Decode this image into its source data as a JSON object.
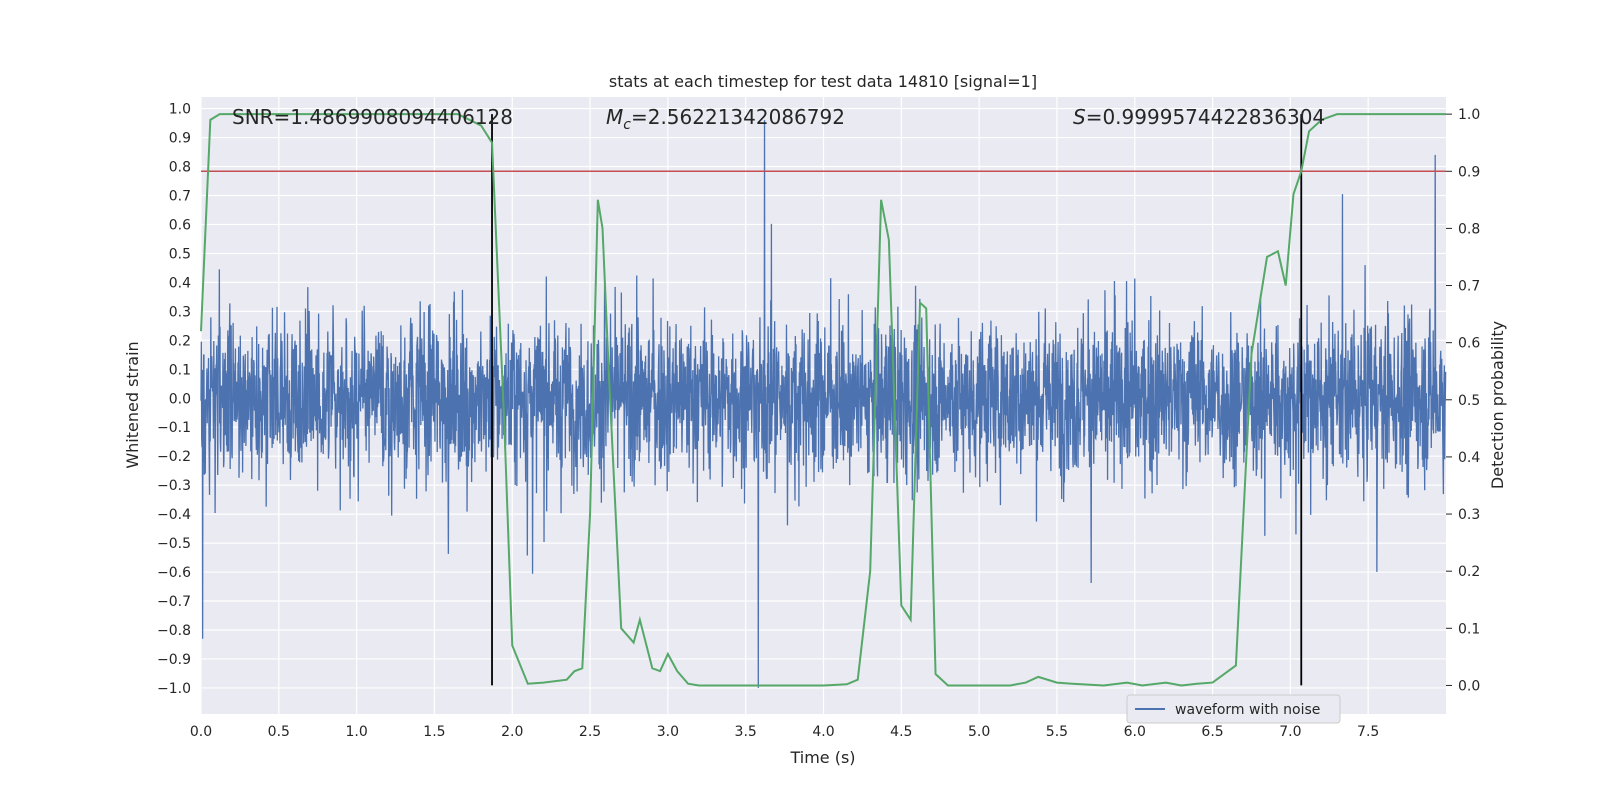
{
  "chart_data": {
    "type": "line",
    "title": "stats at each timestep for test data 14810 [signal=1]",
    "xlabel": "Time (s)",
    "ylabel_left": "Whitened strain",
    "ylabel_right": "Detection probability",
    "xlim": [
      0.0,
      8.0
    ],
    "ylim_left": [
      -1.09,
      1.04
    ],
    "ylim_right": [
      -0.05,
      1.03
    ],
    "x_ticks": [
      "0.0",
      "0.5",
      "1.0",
      "1.5",
      "2.0",
      "2.5",
      "3.0",
      "3.5",
      "4.0",
      "4.5",
      "5.0",
      "5.5",
      "6.0",
      "6.5",
      "7.0",
      "7.5"
    ],
    "y_ticks_left": [
      "1.0",
      "0.9",
      "0.8",
      "0.7",
      "0.6",
      "0.5",
      "0.4",
      "0.3",
      "0.2",
      "0.1",
      "0.0",
      "−0.1",
      "−0.2",
      "−0.3",
      "−0.4",
      "−0.5",
      "−0.6",
      "−0.7",
      "−0.8",
      "−0.9",
      "−1.0"
    ],
    "y_ticks_right": [
      "1.0",
      "0.9",
      "0.8",
      "0.7",
      "0.6",
      "0.5",
      "0.4",
      "0.3",
      "0.2",
      "0.1",
      "0.0"
    ],
    "grid": true,
    "legend_position": "bottom-right",
    "colors": {
      "background": "#eaeaf2",
      "grid": "#ffffff",
      "waveform": "#4c72b0",
      "probability": "#55a868",
      "threshold": "#c44e52",
      "markers": "#000000"
    },
    "annotations": {
      "snr": "SNR=1.4869908094406128",
      "mc_symbol": "M",
      "mc_subscript": "c",
      "mc_value": "=2.56221342086792",
      "s_symbol": "S",
      "s_value": "=0.9999574422836304"
    },
    "threshold_probability": 0.9,
    "vertical_markers": [
      1.87,
      7.07
    ],
    "series": [
      {
        "name": "waveform with noise",
        "axis": "left",
        "kind": "noise",
        "sample_count": 3800,
        "approx_min": -1.0,
        "approx_max": 0.96,
        "notable_peaks": [
          {
            "x": 3.62,
            "y": 0.96
          },
          {
            "x": 3.58,
            "y": -1.0
          },
          {
            "x": 0.01,
            "y": -0.83
          },
          {
            "x": 7.93,
            "y": 0.84
          }
        ]
      },
      {
        "name": "detection probability",
        "axis": "right",
        "kind": "line",
        "x": [
          0.0,
          0.06,
          0.12,
          0.25,
          0.5,
          0.75,
          1.0,
          1.25,
          1.5,
          1.65,
          1.8,
          1.87,
          1.95,
          2.0,
          2.1,
          2.2,
          2.35,
          2.4,
          2.45,
          2.5,
          2.55,
          2.58,
          2.62,
          2.7,
          2.78,
          2.82,
          2.9,
          2.95,
          3.0,
          3.06,
          3.13,
          3.2,
          3.4,
          3.6,
          3.8,
          4.0,
          4.15,
          4.22,
          4.3,
          4.37,
          4.42,
          4.5,
          4.56,
          4.62,
          4.66,
          4.72,
          4.8,
          4.9,
          5.2,
          5.3,
          5.38,
          5.5,
          5.6,
          5.8,
          5.95,
          6.05,
          6.2,
          6.3,
          6.4,
          6.5,
          6.65,
          6.75,
          6.85,
          6.92,
          6.97,
          7.02,
          7.07,
          7.12,
          7.2,
          7.3,
          7.5,
          7.7,
          8.0
        ],
        "values": [
          0.62,
          0.99,
          1.0,
          1.0,
          1.0,
          1.0,
          1.0,
          1.0,
          1.0,
          1.0,
          0.98,
          0.95,
          0.45,
          0.07,
          0.003,
          0.005,
          0.01,
          0.025,
          0.03,
          0.3,
          0.85,
          0.8,
          0.55,
          0.1,
          0.075,
          0.115,
          0.03,
          0.025,
          0.055,
          0.025,
          0.003,
          0.0,
          0.0,
          0.0,
          0.0,
          0.0,
          0.002,
          0.01,
          0.2,
          0.85,
          0.78,
          0.14,
          0.115,
          0.67,
          0.66,
          0.02,
          0.0,
          0.0,
          0.0,
          0.005,
          0.015,
          0.005,
          0.003,
          0.0,
          0.005,
          0.0,
          0.005,
          0.0,
          0.003,
          0.005,
          0.035,
          0.58,
          0.75,
          0.76,
          0.7,
          0.86,
          0.9,
          0.97,
          0.99,
          1.0,
          1.0,
          1.0,
          1.0
        ]
      }
    ],
    "legend": [
      "waveform with noise"
    ]
  }
}
